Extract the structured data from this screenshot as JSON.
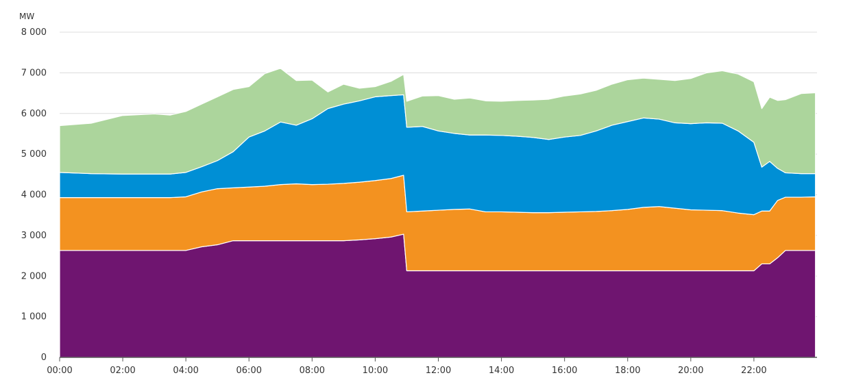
{
  "chart_data": {
    "type": "area",
    "stacked": true,
    "unit_label": "MW",
    "x_tick_labels": [
      "00:00",
      "02:00",
      "04:00",
      "06:00",
      "08:00",
      "10:00",
      "12:00",
      "14:00",
      "16:00",
      "18:00",
      "20:00",
      "22:00"
    ],
    "x_ticks_hours": [
      0,
      2,
      4,
      6,
      8,
      10,
      12,
      14,
      16,
      18,
      20,
      22
    ],
    "x_range_hours": [
      0,
      24
    ],
    "y_tick_labels": [
      "0",
      "1 000",
      "2 000",
      "3 000",
      "4 000",
      "5 000",
      "6 000",
      "7 000",
      "8 000"
    ],
    "y_ticks": [
      0,
      1000,
      2000,
      3000,
      4000,
      5000,
      6000,
      7000,
      8000
    ],
    "ylim": [
      0,
      8000
    ],
    "grid": "horizontal",
    "legend": "none",
    "x_hours": [
      0,
      1,
      2,
      3,
      3.5,
      4,
      4.5,
      5,
      5.5,
      6,
      6.5,
      7,
      7.5,
      8,
      8.5,
      9,
      9.5,
      10,
      10.5,
      10.9,
      11.0,
      11.5,
      12,
      12.5,
      13,
      13.5,
      14,
      14.5,
      15,
      15.5,
      16,
      16.5,
      17,
      17.5,
      18,
      18.5,
      19,
      19.5,
      20,
      20.5,
      21,
      21.5,
      22,
      22.25,
      22.5,
      22.75,
      23,
      23.5,
      23.95
    ],
    "series": [
      {
        "color": "#6f1570",
        "values": [
          2630,
          2630,
          2630,
          2630,
          2630,
          2630,
          2720,
          2770,
          2870,
          2870,
          2870,
          2870,
          2870,
          2870,
          2870,
          2870,
          2890,
          2920,
          2960,
          3030,
          2130,
          2130,
          2130,
          2130,
          2130,
          2130,
          2130,
          2130,
          2130,
          2130,
          2130,
          2130,
          2130,
          2130,
          2130,
          2130,
          2130,
          2130,
          2130,
          2130,
          2130,
          2130,
          2130,
          2300,
          2300,
          2450,
          2630,
          2630,
          2630
        ]
      },
      {
        "color": "#f39220",
        "values": [
          1300,
          1300,
          1300,
          1300,
          1300,
          1320,
          1350,
          1380,
          1300,
          1320,
          1340,
          1380,
          1400,
          1380,
          1390,
          1410,
          1420,
          1430,
          1440,
          1450,
          1450,
          1470,
          1490,
          1510,
          1520,
          1450,
          1450,
          1440,
          1430,
          1430,
          1440,
          1450,
          1460,
          1480,
          1510,
          1560,
          1580,
          1540,
          1500,
          1490,
          1480,
          1420,
          1380,
          1300,
          1300,
          1410,
          1310,
          1310,
          1320
        ]
      },
      {
        "color": "#008fd5",
        "values": [
          620,
          590,
          580,
          580,
          580,
          600,
          620,
          690,
          890,
          1230,
          1360,
          1540,
          1440,
          1620,
          1860,
          1950,
          2000,
          2060,
          2040,
          1980,
          2080,
          2080,
          1950,
          1870,
          1820,
          1890,
          1880,
          1870,
          1850,
          1800,
          1850,
          1880,
          1980,
          2100,
          2160,
          2200,
          2150,
          2100,
          2120,
          2150,
          2150,
          2020,
          1780,
          1080,
          1220,
          790,
          600,
          580,
          570
        ]
      },
      {
        "color": "#acd59c",
        "values": [
          1150,
          1240,
          1440,
          1480,
          1450,
          1500,
          1540,
          1570,
          1530,
          1240,
          1410,
          1320,
          1100,
          950,
          410,
          490,
          310,
          250,
          350,
          500,
          640,
          750,
          870,
          840,
          910,
          840,
          840,
          880,
          920,
          990,
          1010,
          1020,
          1000,
          1010,
          1030,
          980,
          980,
          1040,
          1110,
          1230,
          1290,
          1400,
          1490,
          1440,
          1580,
          1670,
          1800,
          1970,
          1990
        ]
      }
    ]
  }
}
